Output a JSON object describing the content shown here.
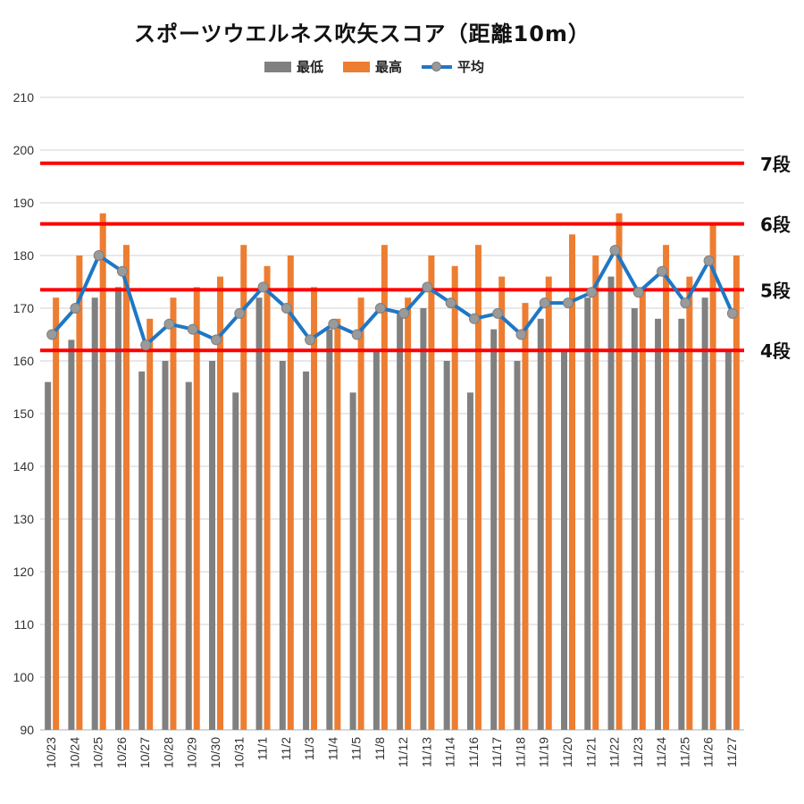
{
  "chart_data": {
    "type": "bar",
    "title": "スポーツウエルネス吹矢スコア（距離10m）",
    "categories": [
      "10/23",
      "10/24",
      "10/25",
      "10/26",
      "10/27",
      "10/28",
      "10/29",
      "10/30",
      "10/31",
      "11/1",
      "11/2",
      "11/3",
      "11/4",
      "11/5",
      "11/8",
      "11/12",
      "11/13",
      "11/14",
      "11/16",
      "11/17",
      "11/18",
      "11/19",
      "11/20",
      "11/21",
      "11/22",
      "11/23",
      "11/24",
      "11/25",
      "11/26",
      "11/27"
    ],
    "series": [
      {
        "name": "最低",
        "kind": "bar",
        "color": "#808080",
        "values": [
          156,
          164,
          172,
          174,
          158,
          160,
          156,
          160,
          154,
          172,
          160,
          158,
          166,
          154,
          162,
          169,
          170,
          160,
          154,
          166,
          160,
          168,
          162,
          172,
          176,
          170,
          168,
          168,
          172,
          162
        ]
      },
      {
        "name": "最高",
        "kind": "bar",
        "color": "#ed7d31",
        "values": [
          172,
          180,
          188,
          182,
          168,
          172,
          174,
          176,
          182,
          178,
          180,
          174,
          168,
          172,
          182,
          172,
          180,
          178,
          182,
          176,
          171,
          176,
          184,
          180,
          188,
          174,
          182,
          176,
          186,
          180
        ]
      },
      {
        "name": "平均",
        "kind": "line",
        "color": "#1f77c4",
        "marker_color": "#9a9a9a",
        "values": [
          165,
          170,
          180,
          177,
          163,
          167,
          166,
          164,
          169,
          174,
          170,
          164,
          167,
          165,
          170,
          169,
          174,
          171,
          168,
          169,
          165,
          171,
          171,
          173,
          181,
          173,
          177,
          171,
          179,
          169
        ]
      }
    ],
    "ylim": [
      90,
      210
    ],
    "yticks": [
      "90",
      "100",
      "110",
      "120",
      "130",
      "140",
      "150",
      "160",
      "170",
      "180",
      "190",
      "200",
      "210"
    ],
    "grid": true,
    "legend_position": "top",
    "reference_lines": [
      {
        "label": "7段",
        "value": 197.5,
        "color": "#ff0000"
      },
      {
        "label": "6段",
        "value": 186,
        "color": "#ff0000"
      },
      {
        "label": "5段",
        "value": 173.5,
        "color": "#ff0000"
      },
      {
        "label": "4段",
        "value": 162,
        "color": "#ff0000"
      }
    ]
  }
}
